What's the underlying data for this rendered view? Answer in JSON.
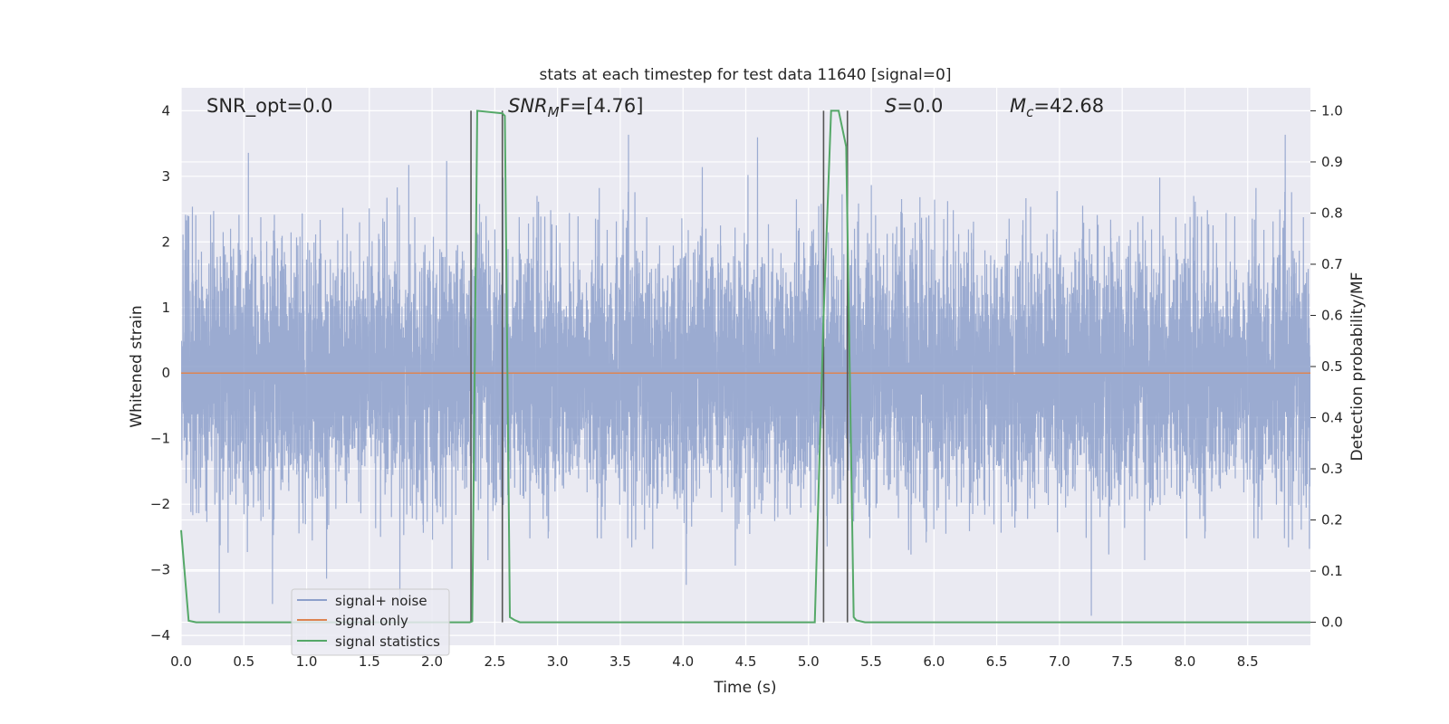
{
  "chart_data": {
    "type": "line",
    "title": "stats at each timestep for test data 11640 [signal=0]",
    "xlabel": "Time (s)",
    "ylabel": "Whitened strain",
    "y2label": "Detection probability/MF",
    "xlim": [
      0,
      9
    ],
    "ylim": [
      -4.15,
      4.35
    ],
    "y2lim": [
      -0.045,
      1.045
    ],
    "xticks": [
      "0.0",
      "0.5",
      "1.0",
      "1.5",
      "2.0",
      "2.5",
      "3.0",
      "3.5",
      "4.0",
      "4.5",
      "5.0",
      "5.5",
      "6.0",
      "6.5",
      "7.0",
      "7.5",
      "8.0",
      "8.5"
    ],
    "yticks": [
      "4",
      "3",
      "2",
      "1",
      "0",
      "−1",
      "−2",
      "−3",
      "−4"
    ],
    "y2ticks": [
      "1.0",
      "0.9",
      "0.8",
      "0.7",
      "0.6",
      "0.5",
      "0.4",
      "0.3",
      "0.2",
      "0.1",
      "0.0"
    ],
    "grid": true,
    "legend_position": "lower-left",
    "annotations": {
      "snr_opt": "SNR_opt=0.0",
      "snr_mf_sym": "SNR",
      "snr_mf_sub": "M",
      "snr_mf_rest": "F=[4.76]",
      "s_sym": "S",
      "s_rest": "=0.0",
      "mc_sym": "M",
      "mc_sub": "c",
      "mc_rest": "=42.68"
    },
    "series": [
      {
        "name": "signal+ noise",
        "color": "#8da0cb",
        "description": "whitened noise, approx gaussian, range about -3.7 to 4.0",
        "sample_rate": 2048
      },
      {
        "name": "signal only",
        "color": "#dd8452",
        "x": [
          0,
          9
        ],
        "y": [
          0,
          0
        ]
      },
      {
        "name": "signal statistics",
        "color": "#55a868",
        "x": [
          0.0,
          0.06,
          0.12,
          2.3,
          2.32,
          2.36,
          2.56,
          2.58,
          2.62,
          2.66,
          2.7,
          5.05,
          5.12,
          5.18,
          5.24,
          5.3,
          5.36,
          5.38,
          5.45,
          9.0
        ],
        "y": [
          0.18,
          0.003,
          0.0,
          0.0,
          0.002,
          1.0,
          0.995,
          0.99,
          0.01,
          0.004,
          0.0,
          0.0,
          0.6,
          1.0,
          1.0,
          0.93,
          0.01,
          0.004,
          0.0,
          0.0
        ]
      }
    ],
    "vertical_lines": [
      2.31,
      2.56,
      5.12,
      5.31
    ],
    "legend": [
      "signal+ noise",
      "signal only",
      "signal statistics"
    ]
  },
  "colors": {
    "background": "#eaeaf2",
    "grid": "#ffffff",
    "noise": "#8da0cb",
    "signal": "#dd8452",
    "stats": "#55a868",
    "vline": "#555555"
  }
}
